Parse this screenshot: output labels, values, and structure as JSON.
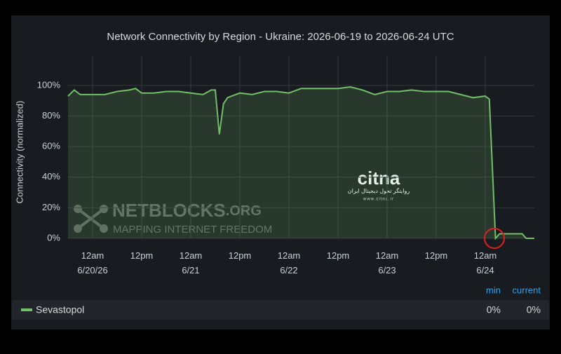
{
  "chart_data": {
    "type": "area",
    "title": "Network Connectivity by Region - Ukraine: 2026-06-19 to 2026-06-24 UTC",
    "y_label": "Connectivity (normalized)",
    "x": [
      "2026-06-19T18:00",
      "2026-06-19T19:30",
      "2026-06-19T21:00",
      "2026-06-20T00:00",
      "2026-06-20T03:00",
      "2026-06-20T06:00",
      "2026-06-20T09:00",
      "2026-06-20T10:30",
      "2026-06-20T12:00",
      "2026-06-20T15:00",
      "2026-06-20T18:00",
      "2026-06-20T21:00",
      "2026-06-21T00:00",
      "2026-06-21T03:00",
      "2026-06-21T05:00",
      "2026-06-21T06:00",
      "2026-06-21T07:00",
      "2026-06-21T08:00",
      "2026-06-21T09:00",
      "2026-06-21T10:00",
      "2026-06-21T12:00",
      "2026-06-21T15:00",
      "2026-06-21T18:00",
      "2026-06-21T21:00",
      "2026-06-22T00:00",
      "2026-06-22T03:00",
      "2026-06-22T06:00",
      "2026-06-22T09:00",
      "2026-06-22T12:00",
      "2026-06-22T15:00",
      "2026-06-22T18:00",
      "2026-06-22T21:00",
      "2026-06-23T00:00",
      "2026-06-23T03:00",
      "2026-06-23T06:00",
      "2026-06-23T09:00",
      "2026-06-23T12:00",
      "2026-06-23T15:00",
      "2026-06-23T18:00",
      "2026-06-23T21:00",
      "2026-06-24T00:00",
      "2026-06-24T01:00",
      "2026-06-24T02:30",
      "2026-06-24T03:30",
      "2026-06-24T06:00",
      "2026-06-24T09:00",
      "2026-06-24T10:00",
      "2026-06-24T12:00"
    ],
    "series": [
      {
        "name": "Sevastopol",
        "color": "#73bf69",
        "values": [
          93,
          97,
          94,
          94,
          94,
          96,
          97,
          98,
          95,
          95,
          96,
          96,
          95,
          94,
          97,
          97,
          68,
          88,
          92,
          93,
          95,
          94,
          96,
          96,
          95,
          98,
          98,
          98,
          98,
          99,
          97,
          94,
          96,
          96,
          97,
          96,
          96,
          96,
          94,
          92,
          93,
          91,
          0,
          3,
          3,
          3,
          0,
          0
        ]
      }
    ],
    "xlim": [
      "2026-06-19T18:00",
      "2026-06-24T12:00"
    ],
    "xticks": [
      {
        "value": "2026-06-20T00:00",
        "label": [
          "12am",
          "6/20/26"
        ]
      },
      {
        "value": "2026-06-20T12:00",
        "label": [
          "12pm"
        ]
      },
      {
        "value": "2026-06-21T00:00",
        "label": [
          "12am",
          "6/21"
        ]
      },
      {
        "value": "2026-06-21T12:00",
        "label": [
          "12pm"
        ]
      },
      {
        "value": "2026-06-22T00:00",
        "label": [
          "12am",
          "6/22"
        ]
      },
      {
        "value": "2026-06-22T12:00",
        "label": [
          "12pm"
        ]
      },
      {
        "value": "2026-06-23T00:00",
        "label": [
          "12am",
          "6/23"
        ]
      },
      {
        "value": "2026-06-23T12:00",
        "label": [
          "12pm"
        ]
      },
      {
        "value": "2026-06-24T00:00",
        "label": [
          "12am",
          "6/24"
        ]
      }
    ],
    "ylim": [
      0,
      110
    ],
    "yticks": [
      {
        "value": 0,
        "label": "0%"
      },
      {
        "value": 20,
        "label": "20%"
      },
      {
        "value": 40,
        "label": "40%"
      },
      {
        "value": 60,
        "label": "60%"
      },
      {
        "value": 80,
        "label": "80%"
      },
      {
        "value": 100,
        "label": "100%"
      }
    ],
    "grid": true,
    "legend": {
      "columns": [
        "min",
        "current"
      ],
      "values": [
        0,
        0
      ],
      "value_labels": [
        "0%",
        "0%"
      ]
    }
  },
  "watermarks": {
    "netblocks": "NETBLOCKS",
    "netblocks_suffix": ".ORG",
    "netblocks_tagline": "MAPPING INTERNET FREEDOM",
    "citna": "citna",
    "citna_tagline": "روایتگر تحول دیجیتال ایران",
    "citna_url": "www.citna.ir"
  }
}
